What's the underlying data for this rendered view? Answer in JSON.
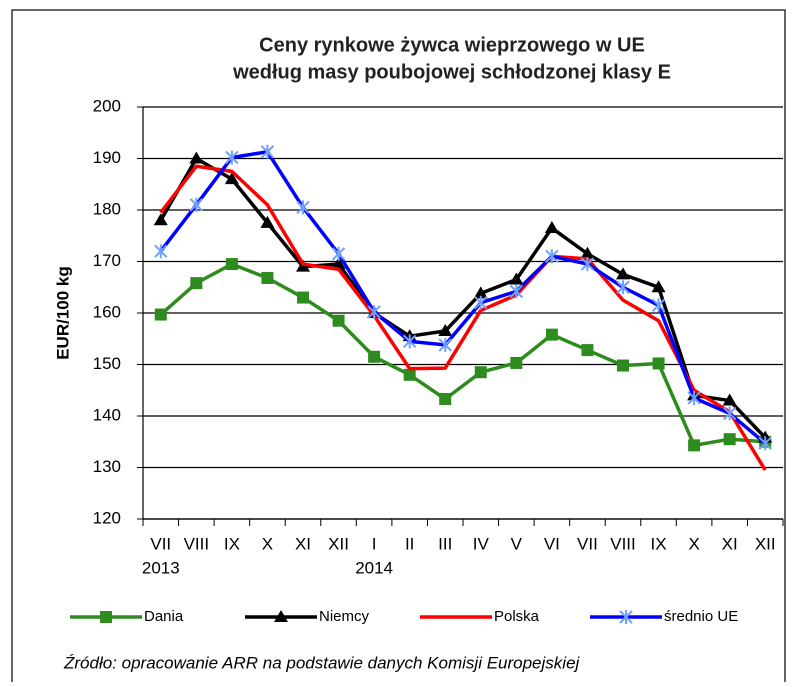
{
  "chart_data": {
    "type": "line",
    "title": [
      "Ceny rynkowe żywca wieprzowego w UE",
      "według masy poubojowej schłodzonej klasy E"
    ],
    "y_label": "EUR/100 kg",
    "categories": [
      "VII",
      "VIII",
      "IX",
      "X",
      "XI",
      "XII",
      "I",
      "II",
      "III",
      "IV",
      "V",
      "VI",
      "VII",
      "VIII",
      "IX",
      "X",
      "XI",
      "XII"
    ],
    "category_years": [
      "2013",
      null,
      null,
      null,
      null,
      null,
      "2014",
      null,
      null,
      null,
      null,
      null,
      null,
      null,
      null,
      null,
      null,
      null
    ],
    "ylim": [
      120,
      200
    ],
    "yticks": [
      120,
      130,
      140,
      150,
      160,
      170,
      180,
      190,
      200
    ],
    "grid": true,
    "legend": "bottom",
    "series": [
      {
        "name": "Dania",
        "color": "#2e8b1e",
        "marker": "square",
        "values": [
          159.7,
          165.8,
          169.5,
          166.8,
          163,
          158.5,
          151.5,
          148,
          143.3,
          148.5,
          150.3,
          155.8,
          152.8,
          149.8,
          150.2,
          134.3,
          135.5,
          135
        ]
      },
      {
        "name": "Niemcy",
        "color": "#000000",
        "marker": "triangle",
        "values": [
          178,
          190,
          186,
          177.5,
          169,
          169.5,
          160,
          155.5,
          156.5,
          163.8,
          166.5,
          176.5,
          171.5,
          167.5,
          165,
          144,
          143,
          135.8
        ]
      },
      {
        "name": "Polska",
        "color": "#ff0000",
        "marker": "none",
        "values": [
          179.5,
          188.5,
          187.5,
          181,
          169.5,
          168.5,
          159.5,
          149.2,
          149.3,
          160.5,
          163.5,
          171,
          170.5,
          162.5,
          158.5,
          145,
          140.8,
          129.5
        ]
      },
      {
        "name": "średnio UE",
        "color": "#0000ff",
        "marker": "star",
        "values": [
          172,
          181,
          190.2,
          191.3,
          180.5,
          171.5,
          160.2,
          154.5,
          153.8,
          162,
          164.2,
          171,
          169.5,
          165,
          161.5,
          143.5,
          140.5,
          134.7
        ]
      }
    ],
    "source": "Źródło: opracowanie ARR na podstawie danych Komisji Europejskiej"
  }
}
